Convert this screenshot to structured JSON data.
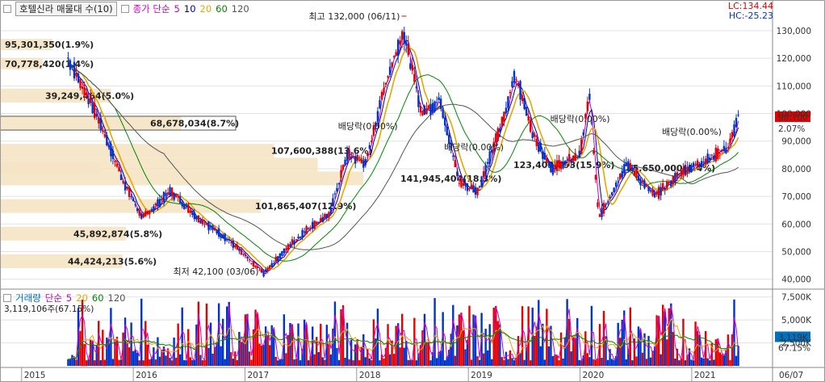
{
  "header": {
    "price_title": "호텔신라 매물대 수(10)",
    "price_legend_label": "종가 단순",
    "price_periods": [
      "5",
      "10",
      "20",
      "60",
      "120"
    ],
    "volume_title": "거래량",
    "volume_legend_label": "단순",
    "volume_periods": [
      "5",
      "20",
      "60",
      "120"
    ],
    "lc_text": "LC:134.44",
    "hc_text": "HC:-25.23",
    "volume_current_text": "3,119,106주(67.15%)"
  },
  "colors": {
    "up": "#e60000",
    "down": "#0033cc",
    "ma5": "#cc00cc",
    "ma10": "#0000aa",
    "ma20": "#e6a800",
    "ma60": "#008800",
    "ma120": "#555555",
    "supply_bar": "#f5e3c4",
    "price_badge_bg": "#e60000",
    "volume_badge_bg": "#0070c0"
  },
  "chart_data": {
    "type": "candlestick",
    "yticks_price": [
      "130,000",
      "120,000",
      "110,000",
      "100,000",
      "90,000",
      "80,000",
      "70,000",
      "60,000",
      "50,000",
      "40,000"
    ],
    "yticks_price_values": [
      130000,
      120000,
      110000,
      100000,
      90000,
      80000,
      70000,
      60000,
      50000,
      40000
    ],
    "ylim_price": [
      37000,
      137000
    ],
    "x_labels": [
      "2015",
      "2016",
      "2017",
      "2018",
      "2019",
      "2020",
      "2021",
      "06/07"
    ],
    "current_price": "98,700",
    "current_change": "2.07%",
    "max_annotation": "최고 132,000 (06/11)",
    "min_annotation": "최저 42,100 (03/06)",
    "dividend_labels": [
      "배당락(0.00%)",
      "배당락(0.00%)",
      "배당락(0.00%)",
      "배당락(0.00%)"
    ],
    "volume_profile": [
      {
        "label": "95,301,350(1.9%)",
        "price_from": 123000,
        "price_to": 127000,
        "share": 1.9
      },
      {
        "label": "70,778,420(1.4%)",
        "price_from": 116000,
        "price_to": 120000,
        "share": 1.4
      },
      {
        "label": "39,249,464(5.0%)",
        "price_from": 104000,
        "price_to": 109000,
        "share": 5.0
      },
      {
        "label": "68,678,034(8.7%)",
        "price_from": 94000,
        "price_to": 99000,
        "share": 8.7
      },
      {
        "label": "107,600,388(13.6%)",
        "price_from": 84000,
        "price_to": 89000,
        "share": 13.6
      },
      {
        "label": "141,945,404(18.3%)",
        "price_from": 74000,
        "price_to": 79000,
        "share": 18.3
      },
      {
        "label": "123,403,793(15.9%)",
        "price_from": 79000,
        "price_to": 84000,
        "share": 15.9
      },
      {
        "label": "101,865,407(12.9%)",
        "price_from": 64000,
        "price_to": 69000,
        "share": 12.9
      },
      {
        "label": "45,892,874(5.8%)",
        "price_from": 54000,
        "price_to": 59000,
        "share": 5.8
      },
      {
        "label": "44,424,213(5.6%)",
        "price_from": 44000,
        "price_to": 49000,
        "share": 5.6
      },
      {
        "label": "35,650,000(4.4%)",
        "price_from": 78500,
        "price_to": 82000,
        "share": 4.4
      }
    ],
    "price_path": [
      {
        "date": "2015-06",
        "close": 120000
      },
      {
        "date": "2015-09",
        "close": 100000
      },
      {
        "date": "2015-12",
        "close": 75000
      },
      {
        "date": "2016-02",
        "close": 62000
      },
      {
        "date": "2016-05",
        "close": 72000
      },
      {
        "date": "2016-08",
        "close": 62000
      },
      {
        "date": "2016-11",
        "close": 55000
      },
      {
        "date": "2017-02",
        "close": 45000
      },
      {
        "date": "2017-03",
        "close": 42100
      },
      {
        "date": "2017-06",
        "close": 53000
      },
      {
        "date": "2017-08",
        "close": 59000
      },
      {
        "date": "2017-10",
        "close": 63000
      },
      {
        "date": "2017-12",
        "close": 85000
      },
      {
        "date": "2018-02",
        "close": 82000
      },
      {
        "date": "2018-04",
        "close": 110000
      },
      {
        "date": "2018-06",
        "close": 130000
      },
      {
        "date": "2018-08",
        "close": 100000
      },
      {
        "date": "2018-10",
        "close": 105000
      },
      {
        "date": "2018-12",
        "close": 75000
      },
      {
        "date": "2019-02",
        "close": 72000
      },
      {
        "date": "2019-05",
        "close": 100000
      },
      {
        "date": "2019-06",
        "close": 115000
      },
      {
        "date": "2019-08",
        "close": 92000
      },
      {
        "date": "2019-10",
        "close": 80000
      },
      {
        "date": "2020-01",
        "close": 85000
      },
      {
        "date": "2020-02",
        "close": 107000
      },
      {
        "date": "2020-03",
        "close": 62000
      },
      {
        "date": "2020-06",
        "close": 82000
      },
      {
        "date": "2020-09",
        "close": 70000
      },
      {
        "date": "2020-12",
        "close": 79000
      },
      {
        "date": "2021-03",
        "close": 84000
      },
      {
        "date": "2021-05",
        "close": 88000
      },
      {
        "date": "2021-06",
        "close": 98700
      }
    ],
    "volume_yticks": [
      "7,500K",
      "5,000K",
      "2,500K"
    ],
    "volume_yticks_values": [
      7500,
      5000,
      2500
    ],
    "ylim_volume_k": [
      0,
      8000
    ],
    "current_volume": "3,119K",
    "current_volume_ratio": "67.15%"
  }
}
